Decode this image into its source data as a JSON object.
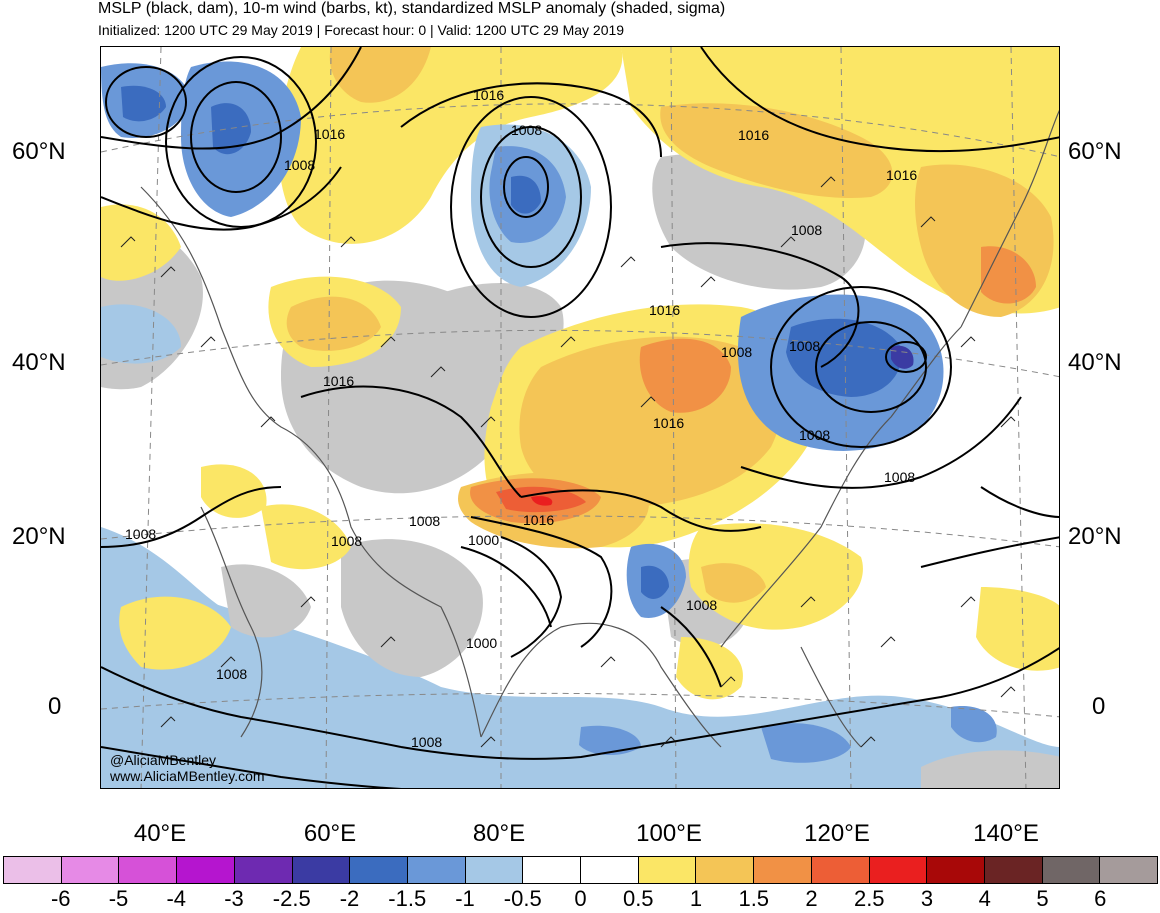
{
  "header": {
    "title": "MSLP (black, dam), 10-m wind (barbs, kt), standardized MSLP anomaly (shaded, sigma)",
    "subtitle": "Initialized: 1200 UTC 29 May 2019 | Forecast hour: 0 | Valid: 1200 UTC 29 May 2019"
  },
  "map": {
    "lat_labels": [
      "60°N",
      "40°N",
      "20°N",
      "0"
    ],
    "lon_labels": [
      "40°E",
      "60°E",
      "80°E",
      "100°E",
      "120°E",
      "140°E"
    ],
    "contour_labels": [
      "1016",
      "1008",
      "1016",
      "1008",
      "1016",
      "1008",
      "1016",
      "1008",
      "1016",
      "1008",
      "1008",
      "1008",
      "1008",
      "1016",
      "1000",
      "1008",
      "1008",
      "1000",
      "1008",
      "1008",
      "1016",
      "1008",
      "1016"
    ],
    "credit_handle": "@AliciaMBentley",
    "credit_url": "www.AliciaMBentley.com"
  },
  "colorbar": {
    "colors": [
      "#ebbfe8",
      "#e68ae6",
      "#d651d8",
      "#b515cf",
      "#6e2ab1",
      "#3b3ba3",
      "#3b6cbf",
      "#6a98d8",
      "#a5c8e6",
      "#ffffff",
      "#ffffff",
      "#fbe666",
      "#f4c556",
      "#f19145",
      "#ed5e36",
      "#ea1f1f",
      "#a80808",
      "#6a2424",
      "#706666",
      "#a59b9b"
    ],
    "tick_labels": [
      "-6",
      "-5",
      "-4",
      "-3",
      "-2.5",
      "-2",
      "-1.5",
      "-1",
      "-0.5",
      "0",
      "0.5",
      "1",
      "1.5",
      "2",
      "2.5",
      "3",
      "4",
      "5",
      "6"
    ]
  }
}
